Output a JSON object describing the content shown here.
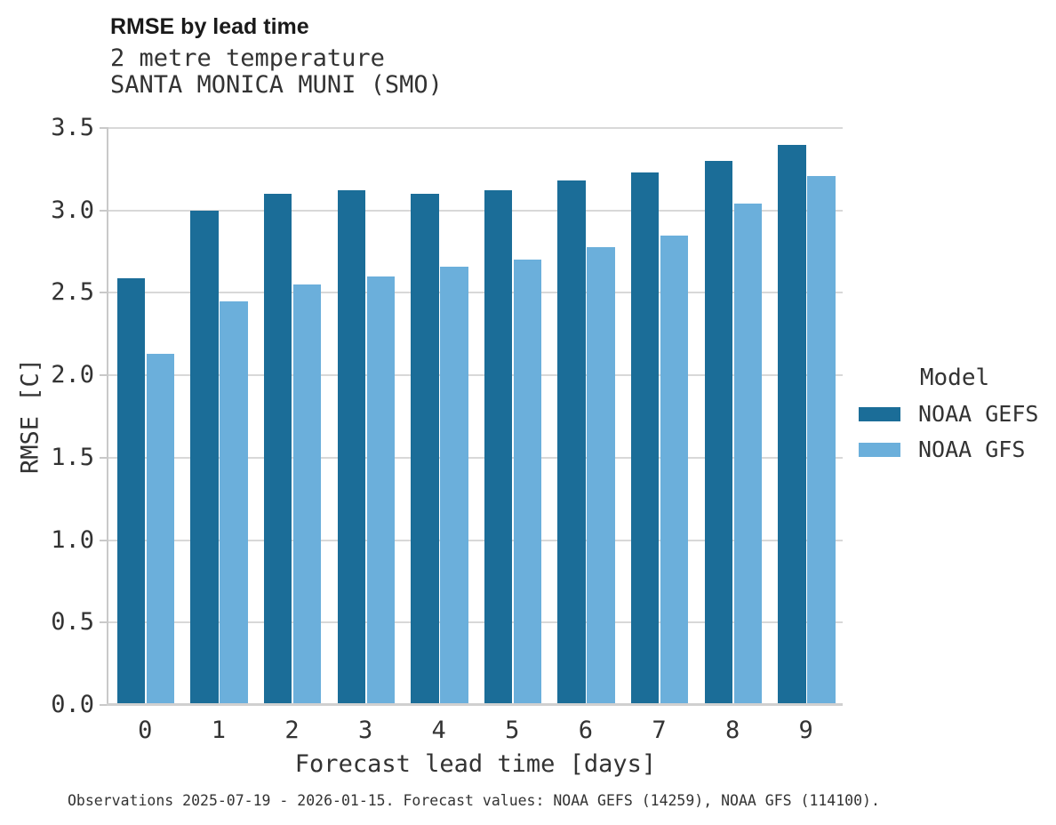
{
  "chart_data": {
    "type": "bar",
    "title": "RMSE by lead time",
    "subtitle": [
      "2 metre temperature",
      "SANTA MONICA MUNI (SMO)"
    ],
    "xlabel": "Forecast lead time [days]",
    "ylabel": "RMSE [C]",
    "categories": [
      "0",
      "1",
      "2",
      "3",
      "4",
      "5",
      "6",
      "7",
      "8",
      "9"
    ],
    "series": [
      {
        "name": "NOAA GEFS",
        "color": "#1b6d98",
        "values": [
          2.59,
          3.0,
          3.1,
          3.12,
          3.1,
          3.12,
          3.18,
          3.23,
          3.3,
          3.4
        ]
      },
      {
        "name": "NOAA GFS",
        "color": "#6bafdb",
        "values": [
          2.13,
          2.45,
          2.55,
          2.6,
          2.66,
          2.7,
          2.78,
          2.85,
          3.04,
          3.21
        ]
      }
    ],
    "ylim": [
      0,
      3.5
    ],
    "yticks": [
      0.0,
      0.5,
      1.0,
      1.5,
      2.0,
      2.5,
      3.0,
      3.5
    ],
    "ytick_labels": [
      "0.0",
      "0.5",
      "1.0",
      "1.5",
      "2.0",
      "2.5",
      "3.0",
      "3.5"
    ],
    "grid": true,
    "legend_title": "Model",
    "legend_position": "right"
  },
  "caption": "Observations 2025-07-19 - 2026-01-15. Forecast values: NOAA GEFS (14259), NOAA GFS (114100).",
  "colors": {
    "dark_blue": "#1b6d98",
    "light_blue": "#6bafdb",
    "gridline": "#d8d8d8",
    "axis": "#c9c9c9",
    "text": "#333333",
    "title_text": "#1a1a1a"
  }
}
